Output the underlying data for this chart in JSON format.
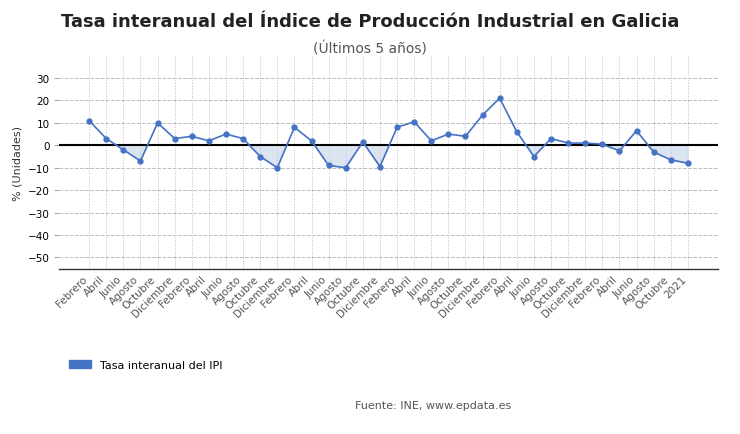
{
  "title": "Tasa interanual del Índice de Producción Industrial en Galicia",
  "subtitle": "(Últimos 5 años)",
  "ylabel": "% (Unidades)",
  "legend_label": "Tasa interanual del IPI",
  "source_text": "Fuente: INE, www.epdata.es",
  "line_color": "#4472c4",
  "fill_color": "#c5d3e8",
  "background_color": "#ffffff",
  "ylim": [
    -55,
    40
  ],
  "yticks": [
    -50,
    -40,
    -30,
    -20,
    -10,
    0,
    10,
    20,
    30
  ],
  "x_labels": [
    "Febrero",
    "Abril",
    "Junio",
    "Agosto",
    "Octubre",
    "Diciembre",
    "Febrero",
    "Abril",
    "Junio",
    "Agosto",
    "Octubre",
    "Diciembre",
    "Febrero",
    "Abril",
    "Junio",
    "Agosto",
    "Octubre",
    "Diciembre",
    "Febrero",
    "Abril",
    "Junio",
    "Agosto",
    "Octubre",
    "Diciembre",
    "Febrero",
    "Abril",
    "Junio",
    "Agosto",
    "Octubre",
    "Diciembre",
    "Febrero",
    "Abril",
    "Junio",
    "Agosto",
    "Octubre",
    "2021"
  ],
  "values": [
    11.0,
    3.0,
    -2.0,
    -7.0,
    10.0,
    3.0,
    4.0,
    2.0,
    5.0,
    3.0,
    -5.0,
    -10.0,
    8.0,
    2.0,
    -9.0,
    -10.0,
    1.5,
    -9.5,
    8.0,
    10.5,
    2.0,
    5.0,
    4.0,
    13.5,
    21.0,
    6.0,
    -5.0,
    3.0,
    1.0,
    1.0,
    0.5,
    -2.5,
    6.5,
    -3.0,
    -6.5,
    -8.0
  ],
  "title_fontsize": 13,
  "subtitle_fontsize": 10,
  "tick_fontsize": 7.5,
  "ylabel_fontsize": 8,
  "legend_fontsize": 8
}
